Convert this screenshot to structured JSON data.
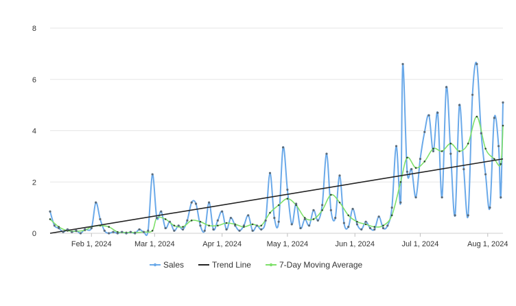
{
  "chart_data": {
    "type": "line",
    "title": "",
    "xlabel": "",
    "ylabel": "",
    "x_range": [
      "2024-01-13",
      "2024-08-08"
    ],
    "ylim": [
      0,
      8
    ],
    "y_ticks": [
      0,
      2,
      4,
      6,
      8
    ],
    "x_ticks": [
      {
        "date": "2024-02-01",
        "label": "Feb 1, 2024"
      },
      {
        "date": "2024-03-01",
        "label": "Mar 1, 2024"
      },
      {
        "date": "2024-04-01",
        "label": "Apr 1, 2024"
      },
      {
        "date": "2024-05-01",
        "label": "May 1, 2024"
      },
      {
        "date": "2024-06-01",
        "label": "Jun 1, 2024"
      },
      {
        "date": "2024-07-01",
        "label": "Jul 1, 2024"
      },
      {
        "date": "2024-08-01",
        "label": "Aug 1, 2024"
      }
    ],
    "grid": {
      "horizontal": true,
      "vertical": false
    },
    "legend": {
      "position": "bottom-center"
    },
    "series": [
      {
        "name": "Sales",
        "color": "#6aa9e9",
        "marker_color": "#5a6b7a",
        "points": [
          [
            "2024-01-13",
            0.85
          ],
          [
            "2024-01-15",
            0.3
          ],
          [
            "2024-01-17",
            0.2
          ],
          [
            "2024-01-19",
            0.05
          ],
          [
            "2024-01-21",
            0.15
          ],
          [
            "2024-01-23",
            0.05
          ],
          [
            "2024-01-25",
            0.1
          ],
          [
            "2024-01-27",
            0.0
          ],
          [
            "2024-01-29",
            0.15
          ],
          [
            "2024-02-01",
            0.2
          ],
          [
            "2024-02-03",
            1.2
          ],
          [
            "2024-02-05",
            0.55
          ],
          [
            "2024-02-07",
            0.1
          ],
          [
            "2024-02-09",
            0.0
          ],
          [
            "2024-02-11",
            0.05
          ],
          [
            "2024-02-13",
            0.0
          ],
          [
            "2024-02-15",
            0.05
          ],
          [
            "2024-02-17",
            0.0
          ],
          [
            "2024-02-19",
            0.05
          ],
          [
            "2024-02-21",
            0.0
          ],
          [
            "2024-02-23",
            0.15
          ],
          [
            "2024-02-25",
            0.05
          ],
          [
            "2024-02-27",
            0.1
          ],
          [
            "2024-02-29",
            2.3
          ],
          [
            "2024-03-02",
            0.6
          ],
          [
            "2024-03-04",
            0.85
          ],
          [
            "2024-03-06",
            0.2
          ],
          [
            "2024-03-08",
            0.45
          ],
          [
            "2024-03-10",
            0.1
          ],
          [
            "2024-03-12",
            0.3
          ],
          [
            "2024-03-14",
            0.15
          ],
          [
            "2024-03-16",
            0.5
          ],
          [
            "2024-03-18",
            1.2
          ],
          [
            "2024-03-20",
            1.15
          ],
          [
            "2024-03-22",
            0.3
          ],
          [
            "2024-03-24",
            0.1
          ],
          [
            "2024-03-26",
            1.2
          ],
          [
            "2024-03-28",
            0.15
          ],
          [
            "2024-03-30",
            0.5
          ],
          [
            "2024-04-01",
            0.85
          ],
          [
            "2024-04-03",
            0.15
          ],
          [
            "2024-04-05",
            0.6
          ],
          [
            "2024-04-07",
            0.3
          ],
          [
            "2024-04-09",
            0.1
          ],
          [
            "2024-04-11",
            0.3
          ],
          [
            "2024-04-13",
            0.7
          ],
          [
            "2024-04-15",
            0.1
          ],
          [
            "2024-04-17",
            0.3
          ],
          [
            "2024-04-19",
            0.15
          ],
          [
            "2024-04-21",
            0.5
          ],
          [
            "2024-04-23",
            2.35
          ],
          [
            "2024-04-25",
            0.6
          ],
          [
            "2024-04-27",
            0.45
          ],
          [
            "2024-04-29",
            3.35
          ],
          [
            "2024-05-01",
            1.7
          ],
          [
            "2024-05-03",
            0.35
          ],
          [
            "2024-05-05",
            1.15
          ],
          [
            "2024-05-07",
            0.2
          ],
          [
            "2024-05-09",
            0.55
          ],
          [
            "2024-05-11",
            0.3
          ],
          [
            "2024-05-13",
            0.9
          ],
          [
            "2024-05-15",
            0.5
          ],
          [
            "2024-05-17",
            1.1
          ],
          [
            "2024-05-19",
            3.1
          ],
          [
            "2024-05-21",
            0.9
          ],
          [
            "2024-05-23",
            0.6
          ],
          [
            "2024-05-25",
            2.25
          ],
          [
            "2024-05-27",
            0.4
          ],
          [
            "2024-05-29",
            0.25
          ],
          [
            "2024-05-31",
            0.95
          ],
          [
            "2024-06-02",
            0.35
          ],
          [
            "2024-06-04",
            0.15
          ],
          [
            "2024-06-06",
            0.45
          ],
          [
            "2024-06-08",
            0.2
          ],
          [
            "2024-06-10",
            0.15
          ],
          [
            "2024-06-12",
            0.65
          ],
          [
            "2024-06-14",
            0.2
          ],
          [
            "2024-06-16",
            0.3
          ],
          [
            "2024-06-18",
            1.0
          ],
          [
            "2024-06-20",
            3.4
          ],
          [
            "2024-06-22",
            1.2
          ],
          [
            "2024-06-23",
            6.6
          ],
          [
            "2024-06-25",
            2.4
          ],
          [
            "2024-06-27",
            2.5
          ],
          [
            "2024-06-29",
            1.4
          ],
          [
            "2024-07-01",
            2.9
          ],
          [
            "2024-07-03",
            3.95
          ],
          [
            "2024-07-05",
            4.6
          ],
          [
            "2024-07-07",
            3.2
          ],
          [
            "2024-07-09",
            4.7
          ],
          [
            "2024-07-11",
            1.4
          ],
          [
            "2024-07-13",
            5.7
          ],
          [
            "2024-07-15",
            3.1
          ],
          [
            "2024-07-17",
            0.7
          ],
          [
            "2024-07-19",
            5.0
          ],
          [
            "2024-07-21",
            2.5
          ],
          [
            "2024-07-23",
            0.7
          ],
          [
            "2024-07-25",
            5.4
          ],
          [
            "2024-07-27",
            6.6
          ],
          [
            "2024-07-29",
            3.9
          ],
          [
            "2024-07-31",
            2.3
          ],
          [
            "2024-08-02",
            1.0
          ],
          [
            "2024-08-04",
            4.5
          ],
          [
            "2024-08-06",
            3.4
          ],
          [
            "2024-08-07",
            1.4
          ],
          [
            "2024-08-08",
            5.1
          ]
        ]
      },
      {
        "name": "Trend Line",
        "color": "#222222",
        "points": [
          [
            "2024-01-13",
            0.0
          ],
          [
            "2024-08-08",
            2.9
          ]
        ]
      },
      {
        "name": "7-Day Moving Average",
        "color": "#7ee06a",
        "marker_color": "#2e4a2e",
        "points": [
          [
            "2024-01-13",
            0.55
          ],
          [
            "2024-01-17",
            0.25
          ],
          [
            "2024-01-21",
            0.1
          ],
          [
            "2024-01-25",
            0.08
          ],
          [
            "2024-01-29",
            0.12
          ],
          [
            "2024-02-01",
            0.25
          ],
          [
            "2024-02-05",
            0.3
          ],
          [
            "2024-02-09",
            0.25
          ],
          [
            "2024-02-13",
            0.05
          ],
          [
            "2024-02-17",
            0.03
          ],
          [
            "2024-02-21",
            0.03
          ],
          [
            "2024-02-25",
            0.05
          ],
          [
            "2024-02-29",
            0.1
          ],
          [
            "2024-03-02",
            0.6
          ],
          [
            "2024-03-06",
            0.55
          ],
          [
            "2024-03-10",
            0.3
          ],
          [
            "2024-03-14",
            0.25
          ],
          [
            "2024-03-18",
            0.5
          ],
          [
            "2024-03-22",
            0.45
          ],
          [
            "2024-03-26",
            0.3
          ],
          [
            "2024-03-30",
            0.3
          ],
          [
            "2024-04-03",
            0.4
          ],
          [
            "2024-04-07",
            0.35
          ],
          [
            "2024-04-11",
            0.25
          ],
          [
            "2024-04-15",
            0.35
          ],
          [
            "2024-04-19",
            0.3
          ],
          [
            "2024-04-23",
            0.8
          ],
          [
            "2024-04-27",
            1.1
          ],
          [
            "2024-05-01",
            1.35
          ],
          [
            "2024-05-05",
            1.1
          ],
          [
            "2024-05-09",
            0.6
          ],
          [
            "2024-05-13",
            0.55
          ],
          [
            "2024-05-17",
            0.9
          ],
          [
            "2024-05-21",
            1.5
          ],
          [
            "2024-05-25",
            1.2
          ],
          [
            "2024-05-29",
            0.7
          ],
          [
            "2024-06-02",
            0.45
          ],
          [
            "2024-06-06",
            0.35
          ],
          [
            "2024-06-10",
            0.25
          ],
          [
            "2024-06-14",
            0.3
          ],
          [
            "2024-06-18",
            0.7
          ],
          [
            "2024-06-22",
            2.0
          ],
          [
            "2024-06-25",
            2.95
          ],
          [
            "2024-06-29",
            2.55
          ],
          [
            "2024-07-03",
            2.8
          ],
          [
            "2024-07-07",
            3.3
          ],
          [
            "2024-07-11",
            3.2
          ],
          [
            "2024-07-15",
            3.5
          ],
          [
            "2024-07-19",
            3.2
          ],
          [
            "2024-07-23",
            3.5
          ],
          [
            "2024-07-27",
            4.55
          ],
          [
            "2024-07-31",
            3.3
          ],
          [
            "2024-08-04",
            2.9
          ],
          [
            "2024-08-07",
            2.7
          ],
          [
            "2024-08-08",
            4.2
          ]
        ]
      }
    ]
  }
}
